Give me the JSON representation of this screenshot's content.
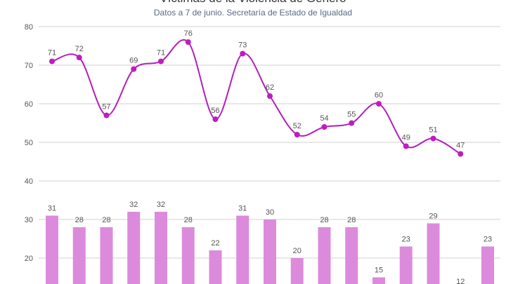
{
  "chart_data": {
    "type": "line+bar",
    "title": "Víctimas de la Violencia de Género",
    "subtitle": "Datos a 7 de junio. Secretaría de Estado de Igualdad",
    "xlabel": "",
    "ylabel": "",
    "y_ticks": [
      20,
      30,
      40,
      50,
      60,
      70,
      80
    ],
    "ylim": [
      10,
      80
    ],
    "grid": true,
    "series": [
      {
        "type": "line",
        "values": [
          71,
          72,
          57,
          69,
          71,
          76,
          56,
          73,
          62,
          52,
          54,
          55,
          60,
          49,
          51,
          47
        ]
      },
      {
        "type": "bar",
        "values": [
          31,
          28,
          28,
          32,
          32,
          28,
          22,
          31,
          30,
          20,
          28,
          28,
          15,
          23,
          29,
          12,
          23
        ]
      }
    ],
    "colors": {
      "line": "#b21fb8",
      "marker": "#c01cc0",
      "bar": "#dc8bdc",
      "grid": "#d0d0d0"
    }
  }
}
